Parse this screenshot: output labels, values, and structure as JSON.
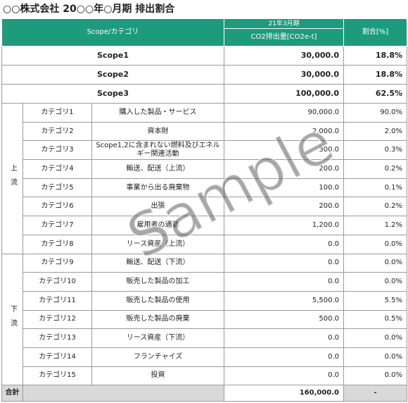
{
  "title": "○○株式会社 20○○年○月期 排出割合",
  "table": {
    "header": {
      "scope": "Scope/カテゴリ",
      "period": "21年3月期",
      "emission": "CO2排出量[CO2e-t]",
      "ratio": "割合[%]"
    },
    "scopes": [
      {
        "name": "Scope1",
        "emission": "30,000.0",
        "ratio": "18.8%"
      },
      {
        "name": "Scope2",
        "emission": "30,000.0",
        "ratio": "18.8%"
      },
      {
        "name": "Scope3",
        "emission": "100,000.0",
        "ratio": "62.5%"
      }
    ],
    "groups": [
      {
        "label": "上流",
        "rows": [
          {
            "category": "カテゴリ1",
            "item": "購入した製品・サービス",
            "emission": "90,000.0",
            "ratio": "90.0%"
          },
          {
            "category": "カテゴリ2",
            "item": "資本財",
            "emission": "2,000.0",
            "ratio": "2.0%"
          },
          {
            "category": "カテゴリ3",
            "item": "Scope1,2に含まれない燃料及びエネルギー関連活動",
            "emission": "300.0",
            "ratio": "0.3%"
          },
          {
            "category": "カテゴリ4",
            "item": "輸送、配送（上流）",
            "emission": "200.0",
            "ratio": "0.2%"
          },
          {
            "category": "カテゴリ5",
            "item": "事業から出る廃棄物",
            "emission": "100.0",
            "ratio": "0.1%"
          },
          {
            "category": "カテゴリ6",
            "item": "出張",
            "emission": "200.0",
            "ratio": "0.2%"
          },
          {
            "category": "カテゴリ7",
            "item": "雇用者の通勤",
            "emission": "1,200.0",
            "ratio": "1.2%"
          },
          {
            "category": "カテゴリ8",
            "item": "リース資産（上流）",
            "emission": "0.0",
            "ratio": "0.0%"
          }
        ]
      },
      {
        "label": "下流",
        "rows": [
          {
            "category": "カテゴリ9",
            "item": "輸送、配送（下流）",
            "emission": "0.0",
            "ratio": "0.0%"
          },
          {
            "category": "カテゴリ10",
            "item": "販売した製品の加工",
            "emission": "0.0",
            "ratio": "0.0%"
          },
          {
            "category": "カテゴリ11",
            "item": "販売した製品の使用",
            "emission": "5,500.0",
            "ratio": "5.5%"
          },
          {
            "category": "カテゴリ12",
            "item": "販売した製品の廃棄",
            "emission": "500.0",
            "ratio": "0.5%"
          },
          {
            "category": "カテゴリ13",
            "item": "リース資産（下流）",
            "emission": "0.0",
            "ratio": "0.0%"
          },
          {
            "category": "カテゴリ14",
            "item": "フランチャイズ",
            "emission": "0.0",
            "ratio": "0.0%"
          },
          {
            "category": "カテゴリ15",
            "item": "投資",
            "emission": "0.0",
            "ratio": "0.0%"
          }
        ]
      }
    ],
    "total": {
      "label": "合計",
      "emission": "160,000.0",
      "ratio": "-"
    }
  },
  "watermark": "Sample"
}
